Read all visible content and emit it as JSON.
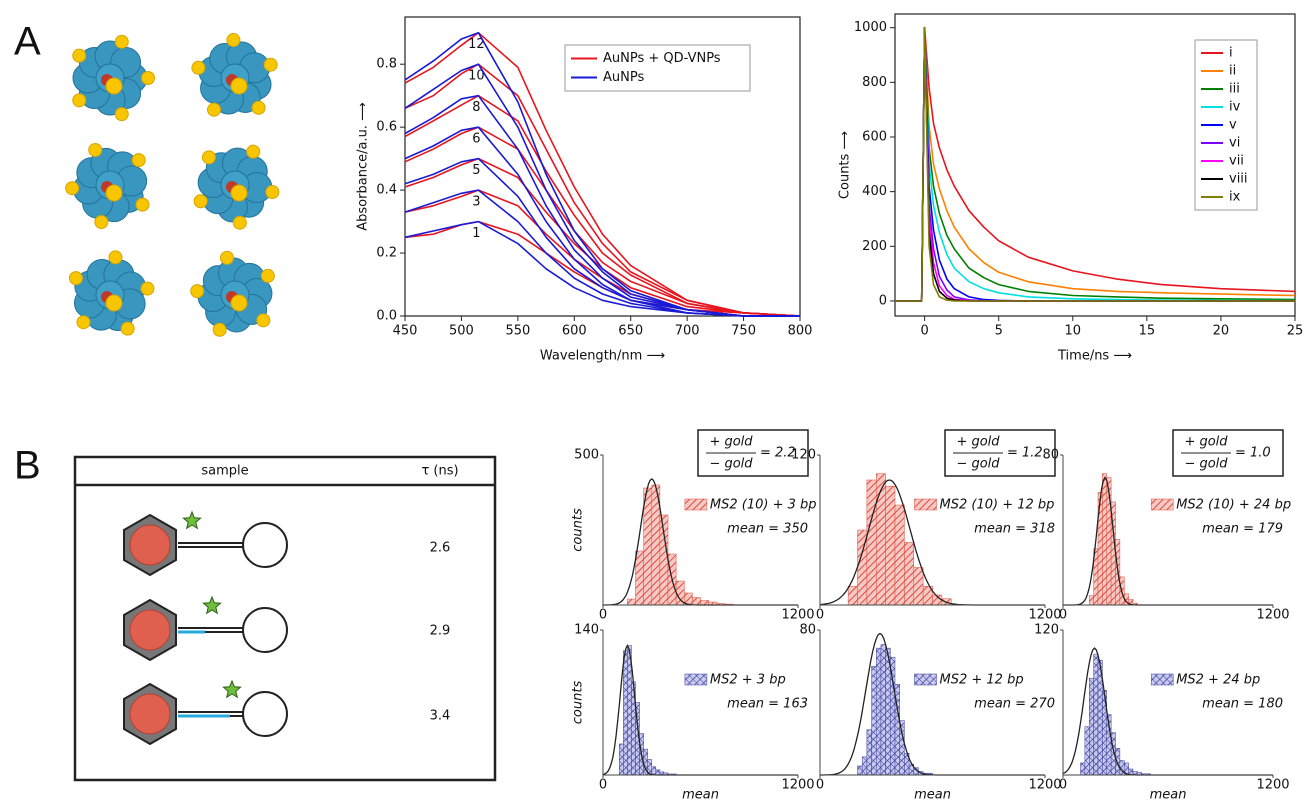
{
  "panels": [
    "A",
    "B"
  ],
  "table": {
    "columns": [
      "sample",
      "τ (ns)"
    ],
    "tau": [
      2.6,
      2.9,
      3.4
    ]
  },
  "chart_data": [
    {
      "type": "line",
      "xlabel": "Wavelength/nm ⟶",
      "ylabel": "Absorbance/a.u. ⟶",
      "x": [
        450,
        475,
        500,
        515,
        550,
        575,
        600,
        625,
        650,
        700,
        750,
        800
      ],
      "xlim": [
        450,
        800
      ],
      "xticks": [
        450,
        500,
        550,
        600,
        650,
        700,
        750,
        800
      ],
      "ylim": [
        0,
        0.95
      ],
      "yticks": [
        {
          "value": 0,
          "label": "0.0"
        },
        0.2,
        0.4,
        0.6,
        0.8
      ],
      "legend": "top-right",
      "series": [
        {
          "name": "AuNPs + QD-VNPs",
          "color": "#e8141e",
          "label": "12",
          "values": [
            0.74,
            0.79,
            0.86,
            0.9,
            0.79,
            0.59,
            0.41,
            0.26,
            0.16,
            0.05,
            0.01,
            0
          ]
        },
        {
          "name": "AuNPs + QD-VNPs",
          "color": "#e8141e",
          "label": "10",
          "values": [
            0.66,
            0.7,
            0.77,
            0.8,
            0.7,
            0.53,
            0.36,
            0.23,
            0.14,
            0.05,
            0.01,
            0
          ]
        },
        {
          "name": "AuNPs + QD-VNPs",
          "color": "#e8141e",
          "label": "8",
          "values": [
            0.57,
            0.62,
            0.67,
            0.7,
            0.62,
            0.46,
            0.32,
            0.2,
            0.13,
            0.04,
            0.01,
            0
          ]
        },
        {
          "name": "AuNPs + QD-VNPs",
          "color": "#e8141e",
          "label": "6",
          "values": [
            0.49,
            0.53,
            0.58,
            0.6,
            0.53,
            0.4,
            0.27,
            0.17,
            0.11,
            0.04,
            0.01,
            0
          ]
        },
        {
          "name": "AuNPs + QD-VNPs",
          "color": "#e8141e",
          "label": "5",
          "values": [
            0.41,
            0.44,
            0.48,
            0.5,
            0.44,
            0.33,
            0.23,
            0.15,
            0.09,
            0.03,
            0.01,
            0
          ]
        },
        {
          "name": "AuNPs + QD-VNPs",
          "color": "#e8141e",
          "label": "3",
          "values": [
            0.33,
            0.35,
            0.38,
            0.4,
            0.35,
            0.26,
            0.18,
            0.12,
            0.07,
            0.02,
            0.01,
            0
          ]
        },
        {
          "name": "AuNPs + QD-VNPs",
          "color": "#e8141e",
          "label": "1",
          "values": [
            0.25,
            0.26,
            0.29,
            0.3,
            0.26,
            0.2,
            0.14,
            0.09,
            0.05,
            0.02,
            0,
            0
          ]
        },
        {
          "name": "AuNPs",
          "color": "#1a1ad6",
          "values": [
            0.75,
            0.81,
            0.88,
            0.9,
            0.68,
            0.45,
            0.27,
            0.15,
            0.08,
            0.02,
            0,
            0
          ]
        },
        {
          "name": "AuNPs",
          "color": "#1a1ad6",
          "values": [
            0.66,
            0.72,
            0.78,
            0.8,
            0.6,
            0.4,
            0.24,
            0.14,
            0.07,
            0.02,
            0,
            0
          ]
        },
        {
          "name": "AuNPs",
          "color": "#1a1ad6",
          "values": [
            0.58,
            0.63,
            0.69,
            0.7,
            0.53,
            0.35,
            0.21,
            0.12,
            0.06,
            0.02,
            0,
            0
          ]
        },
        {
          "name": "AuNPs",
          "color": "#1a1ad6",
          "values": [
            0.5,
            0.54,
            0.59,
            0.6,
            0.45,
            0.3,
            0.18,
            0.1,
            0.05,
            0.02,
            0,
            0
          ]
        },
        {
          "name": "AuNPs",
          "color": "#1a1ad6",
          "values": [
            0.42,
            0.45,
            0.49,
            0.5,
            0.38,
            0.25,
            0.15,
            0.09,
            0.05,
            0.01,
            0,
            0
          ]
        },
        {
          "name": "AuNPs",
          "color": "#1a1ad6",
          "values": [
            0.33,
            0.36,
            0.39,
            0.4,
            0.3,
            0.2,
            0.12,
            0.07,
            0.04,
            0.01,
            0,
            0
          ]
        },
        {
          "name": "AuNPs",
          "color": "#1a1ad6",
          "values": [
            0.25,
            0.27,
            0.29,
            0.3,
            0.23,
            0.15,
            0.09,
            0.05,
            0.03,
            0.01,
            0,
            0
          ]
        }
      ]
    },
    {
      "type": "line",
      "xlabel": "Time/ns ⟶",
      "ylabel": "Counts ⟶",
      "x": [
        -2,
        -0.2,
        0,
        0.3,
        0.6,
        1,
        1.5,
        2,
        3,
        4,
        5,
        7,
        10,
        13,
        16,
        20,
        25
      ],
      "xlim": [
        -2,
        25
      ],
      "xticks": [
        0,
        5,
        10,
        15,
        20,
        25
      ],
      "ylim": [
        -55,
        1050
      ],
      "yticks": [
        0,
        200,
        400,
        600,
        800,
        1000
      ],
      "legend": "top-right",
      "series": [
        {
          "name": "i",
          "color": "#e8141e",
          "values": [
            0,
            0,
            1000,
            780,
            650,
            560,
            480,
            420,
            330,
            270,
            220,
            160,
            110,
            80,
            60,
            45,
            35
          ]
        },
        {
          "name": "ii",
          "color": "#ff8000",
          "values": [
            0,
            0,
            1000,
            640,
            500,
            410,
            330,
            270,
            190,
            140,
            105,
            70,
            45,
            35,
            30,
            25,
            20
          ]
        },
        {
          "name": "iii",
          "color": "#008000",
          "values": [
            0,
            0,
            1000,
            560,
            420,
            320,
            240,
            190,
            120,
            85,
            60,
            35,
            20,
            15,
            10,
            8,
            5
          ]
        },
        {
          "name": "iv",
          "color": "#00e0e0",
          "values": [
            0,
            0,
            1000,
            500,
            350,
            250,
            170,
            120,
            70,
            45,
            30,
            15,
            8,
            5,
            3,
            2,
            1
          ]
        },
        {
          "name": "v",
          "color": "#0000ff",
          "values": [
            0,
            0,
            1000,
            420,
            260,
            150,
            80,
            45,
            15,
            5,
            2,
            0,
            0,
            0,
            0,
            0,
            0
          ]
        },
        {
          "name": "vi",
          "color": "#8000ff",
          "values": [
            0,
            0,
            1000,
            350,
            190,
            90,
            40,
            15,
            4,
            1,
            0,
            0,
            0,
            0,
            0,
            0,
            0
          ]
        },
        {
          "name": "vii",
          "color": "#ff00ff",
          "values": [
            0,
            0,
            1000,
            300,
            140,
            55,
            20,
            6,
            1,
            0,
            0,
            0,
            0,
            0,
            0,
            0,
            0
          ]
        },
        {
          "name": "viii",
          "color": "#000000",
          "values": [
            0,
            0,
            1000,
            250,
            100,
            35,
            10,
            3,
            0,
            0,
            0,
            0,
            0,
            0,
            0,
            0,
            0
          ]
        },
        {
          "name": "ix",
          "color": "#808000",
          "values": [
            0,
            0,
            1000,
            200,
            60,
            15,
            3,
            0,
            0,
            0,
            0,
            0,
            0,
            0,
            0,
            0,
            0
          ]
        }
      ]
    },
    {
      "type": "histogram",
      "name": "MS2 (10) + 3 bp",
      "annotation": "mean = 350",
      "color": "red",
      "ylabel": "counts",
      "ratio": {
        "top": "+ gold",
        "bottom": "− gold",
        "text": "= 2.2"
      },
      "bins": [
        150,
        200,
        250,
        300,
        350,
        400,
        450,
        500,
        550,
        600,
        650,
        700,
        750,
        800
      ],
      "counts": [
        20,
        180,
        390,
        400,
        300,
        170,
        80,
        40,
        25,
        15,
        10,
        5,
        3
      ],
      "fit": {
        "center": 300,
        "width": 70,
        "height": 420
      },
      "xlim": [
        0,
        1200
      ],
      "xticks": [
        0,
        1200
      ],
      "ylim": [
        0,
        500
      ],
      "yticks": [
        500
      ]
    },
    {
      "type": "histogram",
      "name": "MS2 (10) + 12 bp",
      "annotation": "mean = 318",
      "color": "red",
      "ratio": {
        "top": "+ gold",
        "bottom": "− gold",
        "text": "= 1.2"
      },
      "bins": [
        150,
        200,
        250,
        300,
        350,
        400,
        450,
        500,
        550,
        600,
        650,
        700
      ],
      "counts": [
        15,
        60,
        100,
        105,
        95,
        80,
        50,
        30,
        15,
        8,
        5
      ],
      "fit": {
        "center": 370,
        "width": 110,
        "height": 100
      },
      "xlim": [
        0,
        1200
      ],
      "xticks": [
        0,
        1200
      ],
      "ylim": [
        0,
        120
      ],
      "yticks": [
        120
      ]
    },
    {
      "type": "histogram",
      "name": "MS2 (10) + 24 bp",
      "annotation": "mean = 179",
      "color": "red",
      "ratio": {
        "top": "+ gold",
        "bottom": "− gold",
        "text": "= 1.0"
      },
      "bins": [
        150,
        175,
        200,
        225,
        250,
        275,
        300,
        325,
        350,
        375,
        400,
        425
      ],
      "counts": [
        5,
        30,
        60,
        70,
        68,
        55,
        35,
        15,
        6,
        3,
        1
      ],
      "fit": {
        "center": 240,
        "width": 45,
        "height": 68
      },
      "xlim": [
        0,
        1200
      ],
      "xticks": [
        0,
        1200
      ],
      "ylim": [
        0,
        80
      ],
      "yticks": [
        80
      ]
    },
    {
      "type": "histogram",
      "name": "MS2 + 3 bp",
      "annotation": "mean = 163",
      "color": "blue",
      "ylabel": "counts",
      "xlabel": "mean",
      "bins": [
        100,
        125,
        150,
        175,
        200,
        225,
        250,
        275,
        300,
        325,
        350,
        375,
        400,
        425,
        450
      ],
      "counts": [
        30,
        120,
        125,
        90,
        70,
        40,
        25,
        15,
        8,
        5,
        3,
        2,
        1,
        1
      ],
      "fit": {
        "center": 150,
        "width": 45,
        "height": 125
      },
      "xlim": [
        0,
        1200
      ],
      "xticks": [
        0,
        1200
      ],
      "ylim": [
        0,
        140
      ],
      "yticks": [
        140
      ]
    },
    {
      "type": "histogram",
      "name": "MS2 + 12 bp",
      "annotation": "mean = 270",
      "color": "blue",
      "xlabel": "mean",
      "bins": [
        200,
        225,
        250,
        275,
        300,
        325,
        350,
        375,
        400,
        425,
        450,
        475,
        500,
        525,
        550,
        575,
        600
      ],
      "counts": [
        5,
        10,
        25,
        60,
        70,
        72,
        70,
        65,
        50,
        30,
        12,
        6,
        4,
        2,
        1,
        1
      ],
      "fit": {
        "center": 320,
        "width": 75,
        "height": 78
      },
      "xlim": [
        0,
        1200
      ],
      "xticks": [
        0,
        1200
      ],
      "ylim": [
        0,
        80
      ],
      "yticks": [
        80
      ]
    },
    {
      "type": "histogram",
      "name": "MS2 + 24 bp",
      "annotation": "mean = 180",
      "color": "blue",
      "xlabel": "mean",
      "bins": [
        100,
        125,
        150,
        175,
        200,
        225,
        250,
        275,
        300,
        325,
        350,
        375,
        400,
        425,
        450,
        475,
        500
      ],
      "counts": [
        10,
        40,
        80,
        100,
        95,
        70,
        50,
        35,
        22,
        12,
        10,
        5,
        3,
        2,
        1,
        1
      ],
      "fit": {
        "center": 180,
        "width": 60,
        "height": 105
      },
      "xlim": [
        0,
        1200
      ],
      "xticks": [
        0,
        1200
      ],
      "ylim": [
        0,
        120
      ],
      "yticks": [
        120
      ]
    }
  ]
}
